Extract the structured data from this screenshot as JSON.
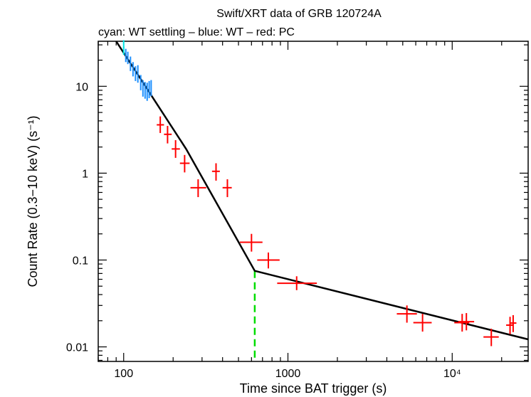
{
  "chart_data": {
    "type": "scatter",
    "title": "Swift/XRT data of GRB 120724A",
    "subtitle": "cyan: WT settling – blue: WT – red: PC",
    "xlabel": "Time since BAT trigger (s)",
    "ylabel": "Count Rate (0.3−10 keV) (s⁻¹)",
    "xscale": "log",
    "yscale": "log",
    "xlim": [
      70,
      29000
    ],
    "ylim": [
      0.0068,
      33
    ],
    "x_ticks": [
      {
        "value": 100,
        "label": "100"
      },
      {
        "value": 1000,
        "label": "1000"
      },
      {
        "value": 10000,
        "label": "10⁴"
      }
    ],
    "y_ticks": [
      {
        "value": 0.01,
        "label": "0.01"
      },
      {
        "value": 0.1,
        "label": "0.1"
      },
      {
        "value": 1,
        "label": "1"
      },
      {
        "value": 10,
        "label": "10"
      }
    ],
    "series": [
      {
        "name": "WT settling",
        "color": "#00e5e5",
        "points": [
          {
            "x": 100,
            "y": 28,
            "xlo": 99,
            "xhi": 101,
            "ylo": 23,
            "yhi": 34
          }
        ]
      },
      {
        "name": "WT",
        "color": "#1e90ff",
        "points": [
          {
            "x": 103,
            "y": 23,
            "xlo": 102,
            "xhi": 104,
            "ylo": 19,
            "yhi": 27
          },
          {
            "x": 106,
            "y": 21,
            "xlo": 105,
            "xhi": 107,
            "ylo": 18,
            "yhi": 25
          },
          {
            "x": 110,
            "y": 18,
            "xlo": 109,
            "xhi": 111,
            "ylo": 15,
            "yhi": 22
          },
          {
            "x": 114,
            "y": 16,
            "xlo": 113,
            "xhi": 115,
            "ylo": 13,
            "yhi": 19
          },
          {
            "x": 118,
            "y": 14,
            "xlo": 117,
            "xhi": 119,
            "ylo": 11.5,
            "yhi": 17
          },
          {
            "x": 122,
            "y": 14,
            "xlo": 121,
            "xhi": 123,
            "ylo": 11,
            "yhi": 17.5
          },
          {
            "x": 127,
            "y": 11,
            "xlo": 126,
            "xhi": 128,
            "ylo": 9,
            "yhi": 13.5
          },
          {
            "x": 131,
            "y": 9.5,
            "xlo": 130,
            "xhi": 132,
            "ylo": 7.6,
            "yhi": 11.8
          },
          {
            "x": 135,
            "y": 9,
            "xlo": 134,
            "xhi": 136,
            "ylo": 7.2,
            "yhi": 11.2
          },
          {
            "x": 139,
            "y": 8.8,
            "xlo": 138,
            "xhi": 140,
            "ylo": 6.8,
            "yhi": 11
          },
          {
            "x": 143,
            "y": 9.2,
            "xlo": 142,
            "xhi": 144,
            "ylo": 7.3,
            "yhi": 11.5
          },
          {
            "x": 147,
            "y": 9.6,
            "xlo": 146,
            "xhi": 148,
            "ylo": 7.7,
            "yhi": 11.8
          }
        ]
      },
      {
        "name": "PC",
        "color": "#ff0000",
        "points": [
          {
            "x": 167,
            "y": 3.6,
            "xlo": 159,
            "xhi": 176,
            "ylo": 2.9,
            "yhi": 4.5
          },
          {
            "x": 185,
            "y": 2.8,
            "xlo": 176,
            "xhi": 196,
            "ylo": 2.2,
            "yhi": 3.5
          },
          {
            "x": 207,
            "y": 1.9,
            "xlo": 196,
            "xhi": 220,
            "ylo": 1.5,
            "yhi": 2.4
          },
          {
            "x": 235,
            "y": 1.3,
            "xlo": 220,
            "xhi": 252,
            "ylo": 1.02,
            "yhi": 1.62
          },
          {
            "x": 284,
            "y": 0.68,
            "xlo": 255,
            "xhi": 318,
            "ylo": 0.53,
            "yhi": 0.85
          },
          {
            "x": 365,
            "y": 1.05,
            "xlo": 345,
            "xhi": 385,
            "ylo": 0.82,
            "yhi": 1.3
          },
          {
            "x": 428,
            "y": 0.68,
            "xlo": 400,
            "xhi": 455,
            "ylo": 0.53,
            "yhi": 0.85
          },
          {
            "x": 600,
            "y": 0.16,
            "xlo": 510,
            "xhi": 700,
            "ylo": 0.125,
            "yhi": 0.2
          },
          {
            "x": 760,
            "y": 0.1,
            "xlo": 650,
            "xhi": 890,
            "ylo": 0.08,
            "yhi": 0.122
          },
          {
            "x": 1130,
            "y": 0.054,
            "xlo": 860,
            "xhi": 1500,
            "ylo": 0.045,
            "yhi": 0.065
          },
          {
            "x": 5300,
            "y": 0.024,
            "xlo": 4600,
            "xhi": 6100,
            "ylo": 0.019,
            "yhi": 0.03
          },
          {
            "x": 6600,
            "y": 0.019,
            "xlo": 5800,
            "xhi": 7500,
            "ylo": 0.015,
            "yhi": 0.024
          },
          {
            "x": 11500,
            "y": 0.019,
            "xlo": 10300,
            "xhi": 12700,
            "ylo": 0.015,
            "yhi": 0.024
          },
          {
            "x": 12200,
            "y": 0.0195,
            "xlo": 10900,
            "xhi": 13600,
            "ylo": 0.0155,
            "yhi": 0.0245
          },
          {
            "x": 17300,
            "y": 0.013,
            "xlo": 15500,
            "xhi": 19200,
            "ylo": 0.0102,
            "yhi": 0.0162
          },
          {
            "x": 22500,
            "y": 0.0178,
            "xlo": 21300,
            "xhi": 23600,
            "ylo": 0.014,
            "yhi": 0.0222
          },
          {
            "x": 23500,
            "y": 0.0188,
            "xlo": 22400,
            "xhi": 24600,
            "ylo": 0.0148,
            "yhi": 0.0232
          }
        ]
      }
    ],
    "model": {
      "name": "broken power-law fit",
      "color": "#000000",
      "points": [
        {
          "x": 90,
          "y": 33
        },
        {
          "x": 240,
          "y": 1.9
        },
        {
          "x": 628,
          "y": 0.075
        },
        {
          "x": 29000,
          "y": 0.0122
        }
      ]
    },
    "break_marker": {
      "x": 628,
      "y_from": 0.0068,
      "y_to": 0.075,
      "color": "#00dd00"
    }
  }
}
